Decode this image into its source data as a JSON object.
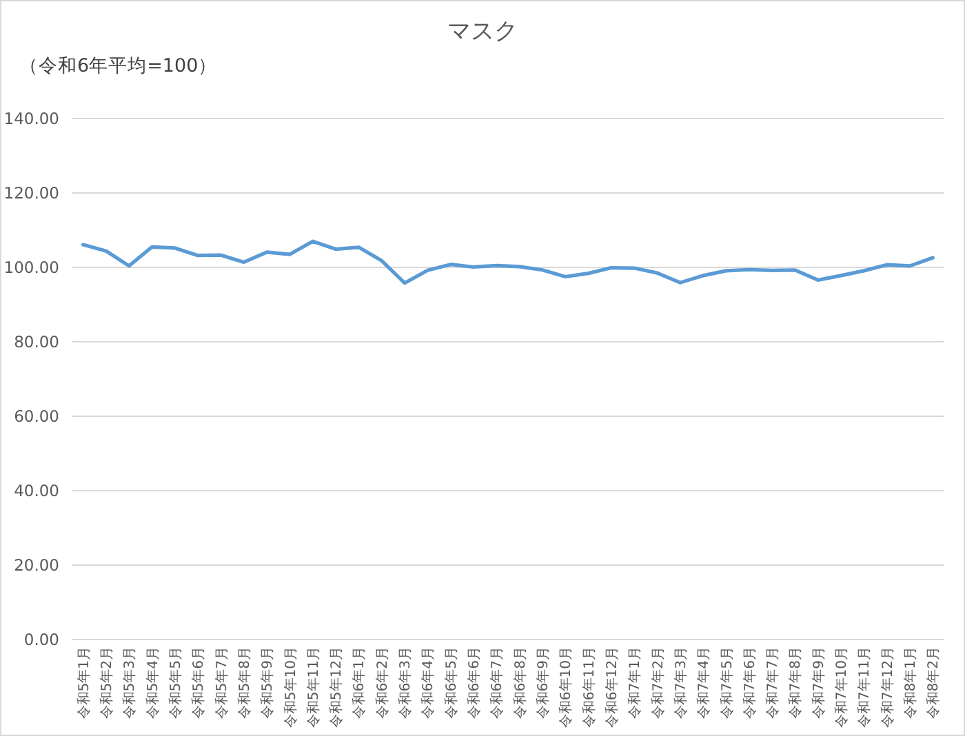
{
  "chart_data": {
    "type": "line",
    "title": "マスク",
    "subtitle": "（令和6年平均=100）",
    "categories": [
      "令和5年1月",
      "令和5年2月",
      "令和5年3月",
      "令和5年4月",
      "令和5年5月",
      "令和5年6月",
      "令和5年7月",
      "令和5年8月",
      "令和5年9月",
      "令和5年10月",
      "令和5年11月",
      "令和5年12月",
      "令和6年1月",
      "令和6年2月",
      "令和6年3月",
      "令和6年4月",
      "令和6年5月",
      "令和6年6月",
      "令和6年7月",
      "令和6年8月",
      "令和6年9月",
      "令和6年10月",
      "令和6年11月",
      "令和6年12月",
      "令和7年1月",
      "令和7年2月",
      "令和7年3月",
      "令和7年4月",
      "令和7年5月",
      "令和7年6月",
      "令和7年7月",
      "令和7年8月",
      "令和7年9月",
      "令和7年10月",
      "令和7年11月",
      "令和7年12月",
      "令和8年1月",
      "令和8年2月"
    ],
    "series": [
      {
        "color": "#5b9bd5",
        "values": [
          106.1,
          104.4,
          100.4,
          105.5,
          105.2,
          103.2,
          103.3,
          101.4,
          104.1,
          103.5,
          107.0,
          104.9,
          105.4,
          101.8,
          95.8,
          99.2,
          100.8,
          100.1,
          100.5,
          100.2,
          99.3,
          97.5,
          98.4,
          99.9,
          99.8,
          98.5,
          95.9,
          97.8,
          99.1,
          99.4,
          99.2,
          99.3,
          96.6,
          97.8,
          99.1,
          100.7,
          100.4,
          102.6
        ]
      }
    ],
    "ylim": [
      0,
      140
    ],
    "yticks": [
      {
        "value": 0,
        "label": "0.00"
      },
      {
        "value": 20,
        "label": "20.00"
      },
      {
        "value": 40,
        "label": "40.00"
      },
      {
        "value": 60,
        "label": "60.00"
      },
      {
        "value": 80,
        "label": "80.00"
      },
      {
        "value": 100,
        "label": "100.00"
      },
      {
        "value": 120,
        "label": "120.00"
      },
      {
        "value": 140,
        "label": "140.00"
      }
    ],
    "grid": "y"
  }
}
